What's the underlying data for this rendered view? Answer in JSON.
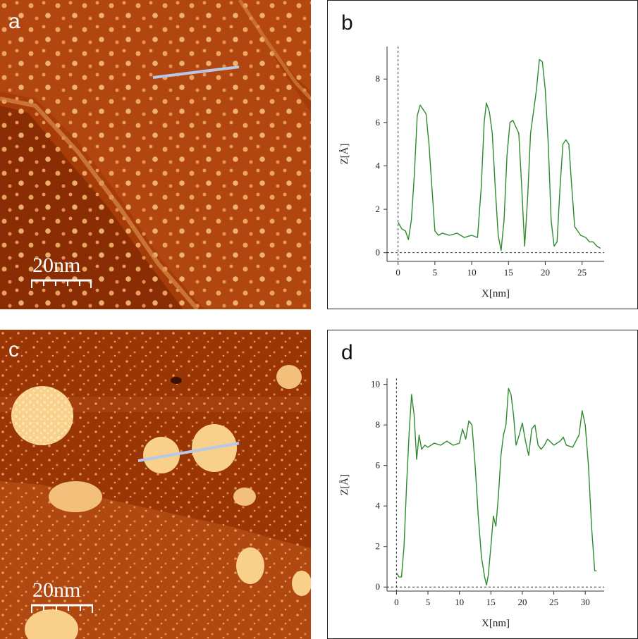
{
  "panels": {
    "a": {
      "letter": "a",
      "scale_label": "20nm"
    },
    "b": {
      "letter": "b"
    },
    "c": {
      "letter": "c",
      "scale_label": "20nm"
    },
    "d": {
      "letter": "d"
    }
  },
  "chart_data": [
    {
      "panel": "b",
      "type": "line",
      "xlabel": "X[nm]",
      "ylabel": "Z[Å]",
      "xlim": [
        -1.5,
        28
      ],
      "ylim": [
        -0.4,
        9.5
      ],
      "xticks": [
        0,
        5,
        10,
        15,
        20,
        25
      ],
      "yticks": [
        0,
        2,
        4,
        6,
        8
      ],
      "color": "#2e8b2e",
      "series": [
        {
          "x": [
            0,
            0.5,
            1.0,
            1.4,
            1.8,
            2.2,
            2.6,
            3.0,
            3.4,
            3.8,
            4.2,
            4.6,
            5.0,
            5.5,
            6.0,
            7.0,
            8.0,
            9.0,
            10.0,
            10.8,
            11.3,
            11.7,
            12.0,
            12.4,
            12.8,
            13.2,
            13.6,
            14.0,
            14.4,
            14.8,
            15.2,
            15.6,
            16.0,
            16.4,
            16.8,
            17.2,
            17.6,
            18.0,
            18.4,
            18.8,
            19.2,
            19.6,
            20.0,
            20.4,
            20.8,
            21.2,
            21.6,
            22.0,
            22.4,
            22.8,
            23.2,
            23.6,
            24.0,
            24.4,
            24.8,
            25.5,
            26.0,
            26.5,
            27.0,
            27.5
          ],
          "y": [
            1.4,
            1.1,
            1.0,
            0.6,
            1.5,
            3.5,
            6.3,
            6.8,
            6.6,
            6.4,
            5.0,
            3.0,
            1.0,
            0.8,
            0.9,
            0.8,
            0.9,
            0.7,
            0.8,
            0.7,
            3.0,
            6.0,
            6.9,
            6.5,
            5.5,
            3.0,
            0.8,
            0.1,
            1.5,
            4.5,
            6.0,
            6.1,
            5.8,
            5.5,
            3.0,
            0.3,
            2.5,
            5.5,
            6.5,
            7.5,
            8.9,
            8.8,
            7.5,
            5.0,
            1.5,
            0.3,
            0.5,
            3.0,
            5.0,
            5.2,
            5.0,
            3.0,
            1.2,
            1.0,
            0.8,
            0.7,
            0.5,
            0.5,
            0.3,
            0.2
          ]
        }
      ]
    },
    {
      "panel": "d",
      "type": "line",
      "xlabel": "X[nm]",
      "ylabel": "Z[Å]",
      "xlim": [
        -1.5,
        33
      ],
      "ylim": [
        -0.2,
        10.3
      ],
      "xticks": [
        0,
        5,
        10,
        15,
        20,
        25,
        30
      ],
      "yticks": [
        0,
        2,
        4,
        6,
        8,
        10
      ],
      "color": "#2e8b2e",
      "series": [
        {
          "x": [
            0,
            0.4,
            0.8,
            1.2,
            1.6,
            2.0,
            2.4,
            2.8,
            3.2,
            3.6,
            4.0,
            4.5,
            5.0,
            6.0,
            7.0,
            8.0,
            9.0,
            10.0,
            10.5,
            11.0,
            11.5,
            12.0,
            12.5,
            13.0,
            13.5,
            14.0,
            14.3,
            14.6,
            15.0,
            15.4,
            15.8,
            16.2,
            16.6,
            17.0,
            17.4,
            17.8,
            18.2,
            18.6,
            19.0,
            19.5,
            20.0,
            20.5,
            21.0,
            21.5,
            22.0,
            22.5,
            23.0,
            23.5,
            24.0,
            25.0,
            26.0,
            26.5,
            27.0,
            28.0,
            29.0,
            29.5,
            30.0,
            30.5,
            31.0,
            31.5,
            31.8
          ],
          "y": [
            0.7,
            0.5,
            0.5,
            2.0,
            5.0,
            7.5,
            9.5,
            8.5,
            6.3,
            7.5,
            6.8,
            7.0,
            6.9,
            7.1,
            7.0,
            7.2,
            7.0,
            7.1,
            7.8,
            7.3,
            8.2,
            8.0,
            6.0,
            3.5,
            1.5,
            0.5,
            0.1,
            0.6,
            2.0,
            3.5,
            3.0,
            4.5,
            6.5,
            7.5,
            8.0,
            9.8,
            9.5,
            8.5,
            7.0,
            7.5,
            8.1,
            7.2,
            6.5,
            7.8,
            8.0,
            7.0,
            6.8,
            7.0,
            7.3,
            7.0,
            7.2,
            7.4,
            7.0,
            6.9,
            7.5,
            8.7,
            8.0,
            6.0,
            3.0,
            0.8,
            0.8
          ]
        }
      ]
    }
  ]
}
